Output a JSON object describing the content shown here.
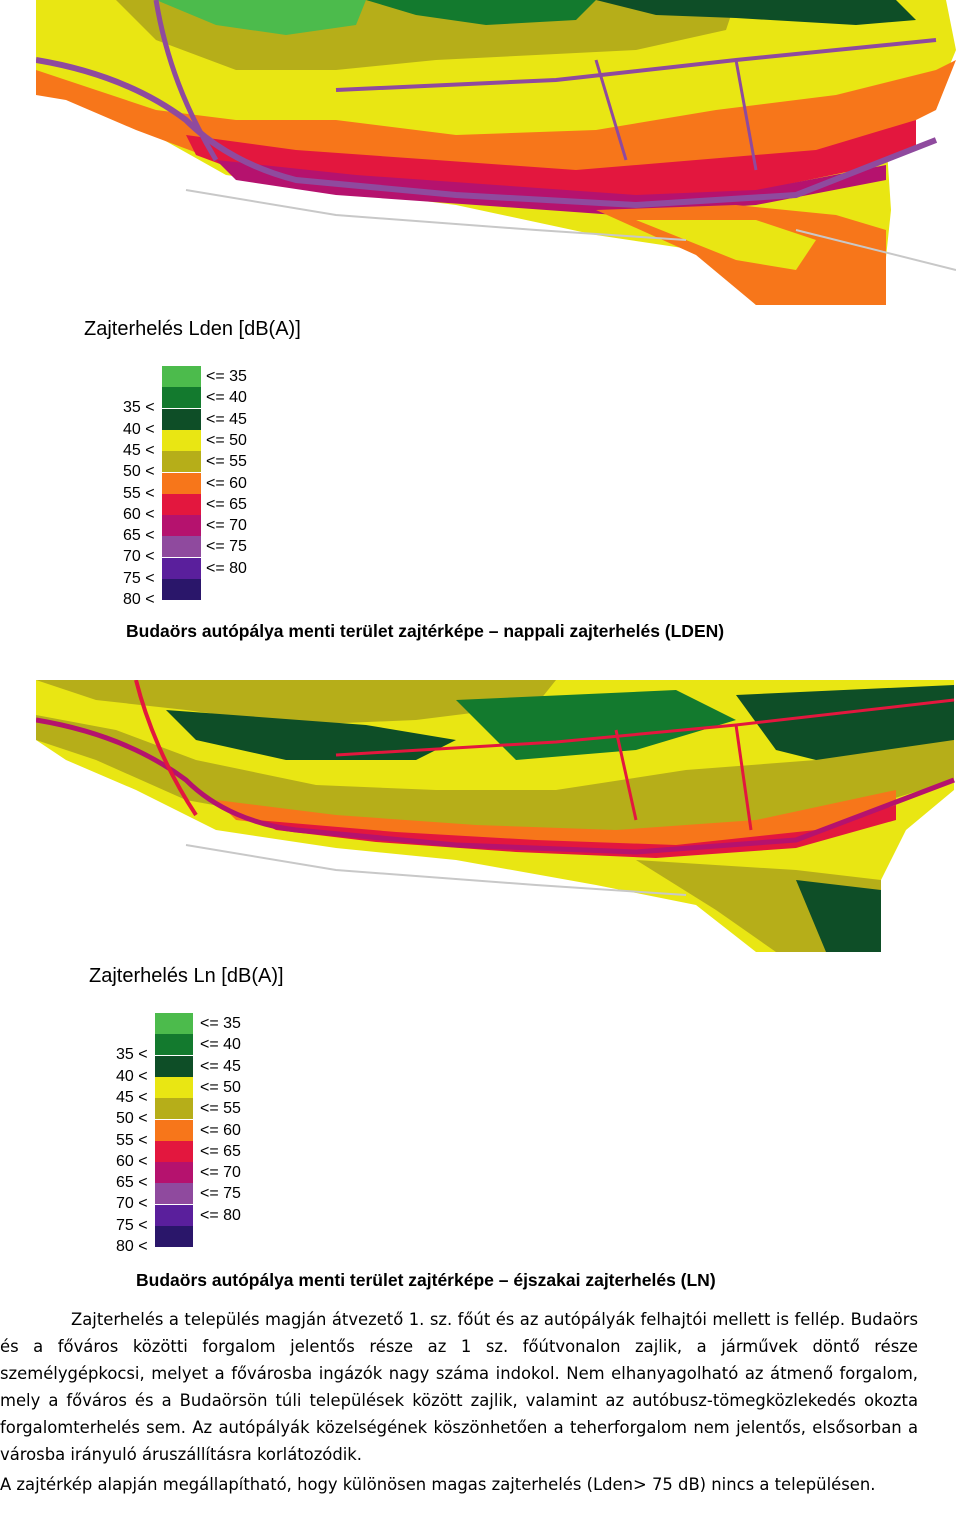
{
  "map_day": {
    "alt": "Lden noise map",
    "colors": {
      "green_light": "#4cbb4c",
      "green": "#137a2e",
      "green_dark": "#0e4e27",
      "yellow": "#e9e613",
      "olive": "#b6ae19",
      "orange": "#f7761a",
      "red": "#e3173e",
      "magenta": "#b5126e",
      "violet": "#8f4a9e",
      "purple": "#5a1f9c",
      "navy": "#2a166a"
    }
  },
  "legend_day": {
    "title": "Zajterhelés Lden [dB(A)]",
    "rows": [
      {
        "low": "",
        "high": "<= 35",
        "color": "#4cbb4c"
      },
      {
        "low": "35 <",
        "high": "<= 40",
        "color": "#137a2e"
      },
      {
        "low": "40 <",
        "high": "<= 45",
        "color": "#0e4e27"
      },
      {
        "low": "45 <",
        "high": "<= 50",
        "color": "#e9e613"
      },
      {
        "low": "50 <",
        "high": "<= 55",
        "color": "#b6ae19"
      },
      {
        "low": "55 <",
        "high": "<= 60",
        "color": "#f7761a"
      },
      {
        "low": "60 <",
        "high": "<= 65",
        "color": "#e3173e"
      },
      {
        "low": "65 <",
        "high": "<= 70",
        "color": "#b5126e"
      },
      {
        "low": "70 <",
        "high": "<= 75",
        "color": "#8f4a9e"
      },
      {
        "low": "75 <",
        "high": "<= 80",
        "color": "#5a1f9c"
      },
      {
        "low": "80 <",
        "high": "",
        "color": "#2a166a"
      }
    ]
  },
  "caption_day": "Budaörs autópálya menti terület zajtérképe – nappali zajterhelés (LDEN)",
  "legend_night": {
    "title": "Zajterhelés Ln [dB(A)]",
    "rows": [
      {
        "low": "",
        "high": "<= 35",
        "color": "#4cbb4c"
      },
      {
        "low": "35 <",
        "high": "<= 40",
        "color": "#137a2e"
      },
      {
        "low": "40 <",
        "high": "<= 45",
        "color": "#0e4e27"
      },
      {
        "low": "45 <",
        "high": "<= 50",
        "color": "#e9e613"
      },
      {
        "low": "50 <",
        "high": "<= 55",
        "color": "#b6ae19"
      },
      {
        "low": "55 <",
        "high": "<= 60",
        "color": "#f7761a"
      },
      {
        "low": "60 <",
        "high": "<= 65",
        "color": "#e3173e"
      },
      {
        "low": "65 <",
        "high": "<= 70",
        "color": "#b5126e"
      },
      {
        "low": "70 <",
        "high": "<= 75",
        "color": "#8f4a9e"
      },
      {
        "low": "75 <",
        "high": "<= 80",
        "color": "#5a1f9c"
      },
      {
        "low": "80 <",
        "high": "",
        "color": "#2a166a"
      }
    ]
  },
  "caption_night": "Budaörs autópálya menti terület zajtérképe – éjszakai zajterhelés (LN)",
  "body": {
    "paragraph1": "Zajterhelés a település magján átvezető 1. sz. főút és az autópályák felhajtói mellett is fellép. Budaörs és a főváros közötti forgalom jelentős része az 1 sz. főútvonalon zajlik, a járművek döntő része személygépkocsi, melyet a fővárosba ingázók nagy száma indokol. Nem elhanyagolható az átmenő forgalom, mely a főváros és a Budaörsön túli települések között zajlik, valamint az autóbusz-tömegközlekedés okozta forgalomterhelés sem. Az autópályák közelségének köszönhetően a teherforgalom nem jelentős, elsősorban a városba irányuló áruszállításra korlátozódik.",
    "paragraph2": "A zajtérkép alapján megállapítható, hogy különösen magas zajterhelés (Lden> 75 dB) nincs a településen."
  }
}
